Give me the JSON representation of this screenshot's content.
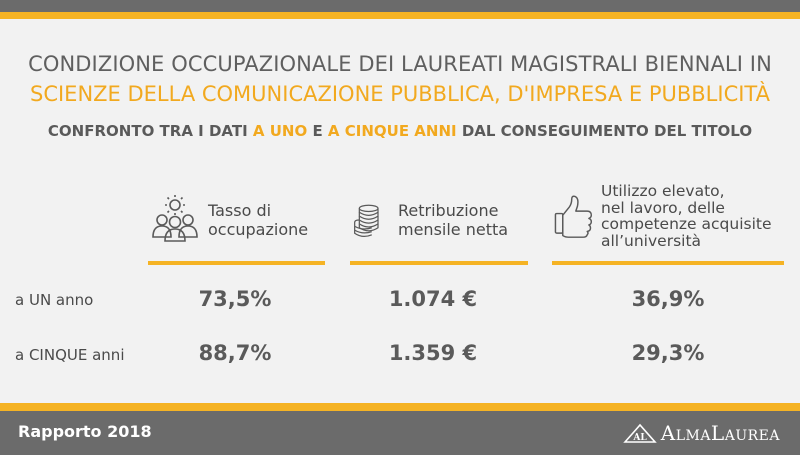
{
  "header": {
    "title_line1": "CONDIZIONE OCCUPAZIONALE DEI LAUREATI MAGISTRALI BIENNALI IN",
    "title_line2": "SCIENZE DELLA COMUNICAZIONE PUBBLICA, D'IMPRESA E PUBBLICITÀ",
    "subtitle_part1": "CONFRONTO TRA I DATI ",
    "subtitle_hl1": "A UNO",
    "subtitle_part2": " E ",
    "subtitle_hl2": "A CINQUE ANNI",
    "subtitle_part3": " DAL CONSEGUIMENTO DEL TITOLO"
  },
  "columns": [
    {
      "label_line1": "Tasso di",
      "label_line2": "occupazione",
      "icon": "people-gear-icon"
    },
    {
      "label_line1": "Retribuzione",
      "label_line2": "mensile netta",
      "icon": "coins-icon"
    },
    {
      "label_line1": "Utilizzo elevato,",
      "label_line2": "nel lavoro, delle",
      "label_line3": "competenze acquisite",
      "label_line4": "all’università",
      "icon": "thumbs-up-icon"
    }
  ],
  "rows": [
    {
      "label": "a UN anno",
      "values": [
        "73,5%",
        "1.074 €",
        "36,9%"
      ]
    },
    {
      "label": "a CINQUE anni",
      "values": [
        "88,7%",
        "1.359 €",
        "29,3%"
      ]
    }
  ],
  "footer": {
    "report": "Rapporto 2018",
    "logo_mark": "AL",
    "brand": "AlmaLaurea"
  },
  "colors": {
    "accent": "#f5b324",
    "bar": "#6b6b6b",
    "text": "#5a5a5a"
  }
}
